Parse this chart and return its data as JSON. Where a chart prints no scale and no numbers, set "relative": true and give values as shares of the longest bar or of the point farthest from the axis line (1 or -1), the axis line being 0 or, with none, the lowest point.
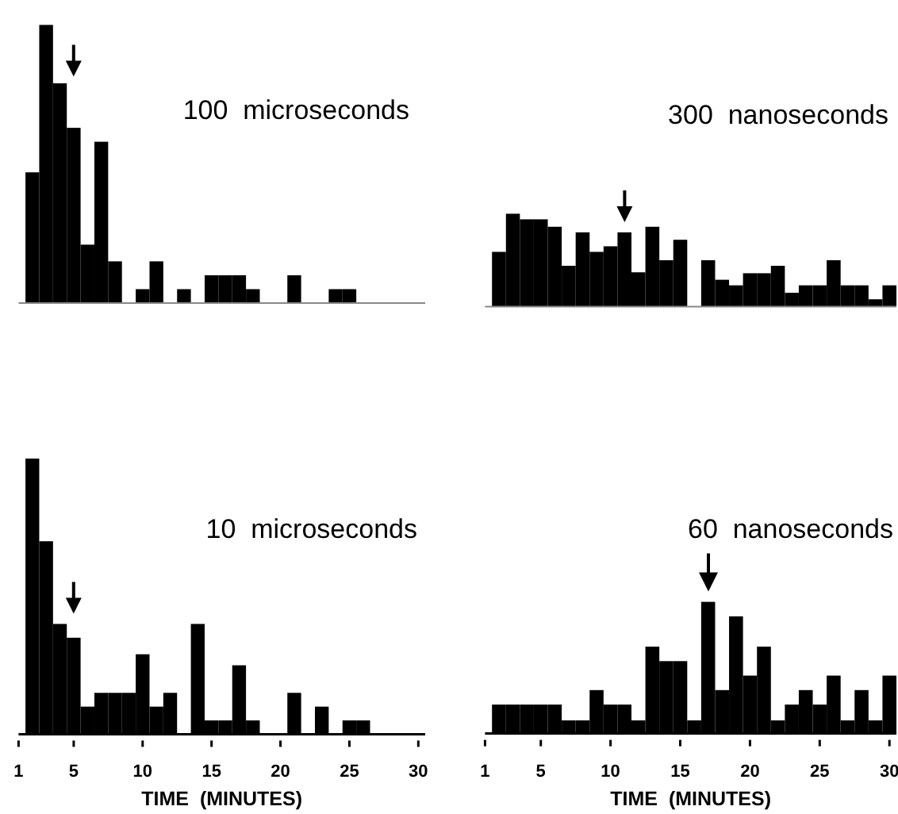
{
  "chart_data": [
    {
      "type": "bar",
      "title": "100  microseconds",
      "relative": true,
      "xlim": [
        1,
        30.5
      ],
      "tick_labels": false,
      "x": [
        2,
        3,
        4,
        5,
        6,
        7,
        8,
        9,
        10,
        11,
        12,
        13,
        14,
        15,
        16,
        17,
        18,
        19,
        20,
        21,
        22,
        23,
        24,
        25,
        26,
        27,
        28,
        29,
        30
      ],
      "values": [
        0.47,
        1.0,
        0.79,
        0.63,
        0.21,
        0.58,
        0.15,
        0,
        0.05,
        0.15,
        0,
        0.05,
        0,
        0.1,
        0.1,
        0.1,
        0.05,
        0,
        0,
        0.1,
        0,
        0,
        0.05,
        0.05,
        0,
        0,
        0,
        0,
        0
      ],
      "color": "#000000"
    },
    {
      "type": "bar",
      "title": "300  nanoseconds",
      "relative": true,
      "xlim": [
        1,
        30.5
      ],
      "tick_labels": false,
      "x": [
        2,
        3,
        4,
        5,
        6,
        7,
        8,
        9,
        10,
        11,
        12,
        13,
        14,
        15,
        16,
        17,
        18,
        19,
        20,
        21,
        22,
        23,
        24,
        25,
        26,
        27,
        28,
        29,
        30
      ],
      "values": [
        0.59,
        1.0,
        0.94,
        0.94,
        0.86,
        0.44,
        0.8,
        0.59,
        0.65,
        0.8,
        0.37,
        0.86,
        0.5,
        0.72,
        0,
        0.5,
        0.29,
        0.23,
        0.36,
        0.36,
        0.44,
        0.15,
        0.23,
        0.23,
        0.5,
        0.23,
        0.23,
        0.08,
        0.23
      ],
      "color": "#000000"
    },
    {
      "type": "bar",
      "title": "10  microseconds",
      "xlabel": "TIME  (MINUTES)",
      "relative": true,
      "xlim": [
        1,
        30.5
      ],
      "xticks": [
        1,
        5,
        10,
        15,
        20,
        25,
        30
      ],
      "x": [
        2,
        3,
        4,
        5,
        6,
        7,
        8,
        9,
        10,
        11,
        12,
        13,
        14,
        15,
        16,
        17,
        18,
        19,
        20,
        21,
        22,
        23,
        24,
        25,
        26,
        27,
        28,
        29,
        30
      ],
      "values": [
        1.0,
        0.7,
        0.4,
        0.35,
        0.1,
        0.15,
        0.15,
        0.15,
        0.29,
        0.1,
        0.15,
        0,
        0.4,
        0.05,
        0.05,
        0.25,
        0.05,
        0,
        0,
        0.15,
        0,
        0.1,
        0,
        0.05,
        0.05,
        0,
        0,
        0,
        0
      ],
      "color": "#000000"
    },
    {
      "type": "bar",
      "title": "60  nanoseconds",
      "xlabel": "TIME  (MINUTES)",
      "relative": true,
      "xlim": [
        1,
        30.5
      ],
      "xticks": [
        1,
        5,
        10,
        15,
        20,
        25,
        30
      ],
      "x": [
        2,
        3,
        4,
        5,
        6,
        7,
        8,
        9,
        10,
        11,
        12,
        13,
        14,
        15,
        16,
        17,
        18,
        19,
        20,
        21,
        22,
        23,
        24,
        25,
        26,
        27,
        28,
        29,
        30
      ],
      "values": [
        0.22,
        0.22,
        0.22,
        0.22,
        0.22,
        0.1,
        0.1,
        0.33,
        0.22,
        0.22,
        0.1,
        0.66,
        0.55,
        0.55,
        0.1,
        1.0,
        0.33,
        0.89,
        0.44,
        0.66,
        0.1,
        0.22,
        0.33,
        0.22,
        0.44,
        0.1,
        0.33,
        0.1,
        0.44
      ],
      "color": "#000000"
    }
  ]
}
